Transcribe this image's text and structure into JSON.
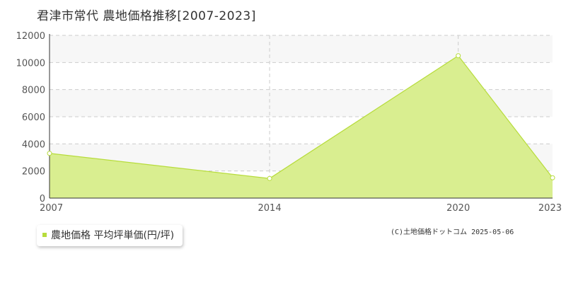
{
  "title": "君津市常代 農地価格推移[2007-2023]",
  "legend": {
    "label": "農地価格 平均坪単価(円/坪)"
  },
  "copyright": "(C)土地価格ドットコム 2025-05-06",
  "colors": {
    "area_fill": "#d9ee90",
    "line": "#b7dc3c",
    "point_fill": "#ffffff",
    "grid": "#cccccc",
    "band": "#f7f7f7",
    "axis": "#333333"
  },
  "chart_data": {
    "type": "area",
    "x": [
      2007,
      2014,
      2020,
      2023
    ],
    "series": [
      {
        "name": "農地価格 平均坪単価(円/坪)",
        "values": [
          3300,
          1450,
          10500,
          1500
        ]
      }
    ],
    "xlim": [
      2007,
      2023
    ],
    "ylim": [
      0,
      12000
    ],
    "x_ticks": [
      "2007",
      "2014",
      "2020",
      "2023"
    ],
    "y_ticks": [
      "0",
      "2000",
      "4000",
      "6000",
      "8000",
      "10000",
      "12000"
    ],
    "grid": true,
    "legend_position": "bottom-left"
  }
}
